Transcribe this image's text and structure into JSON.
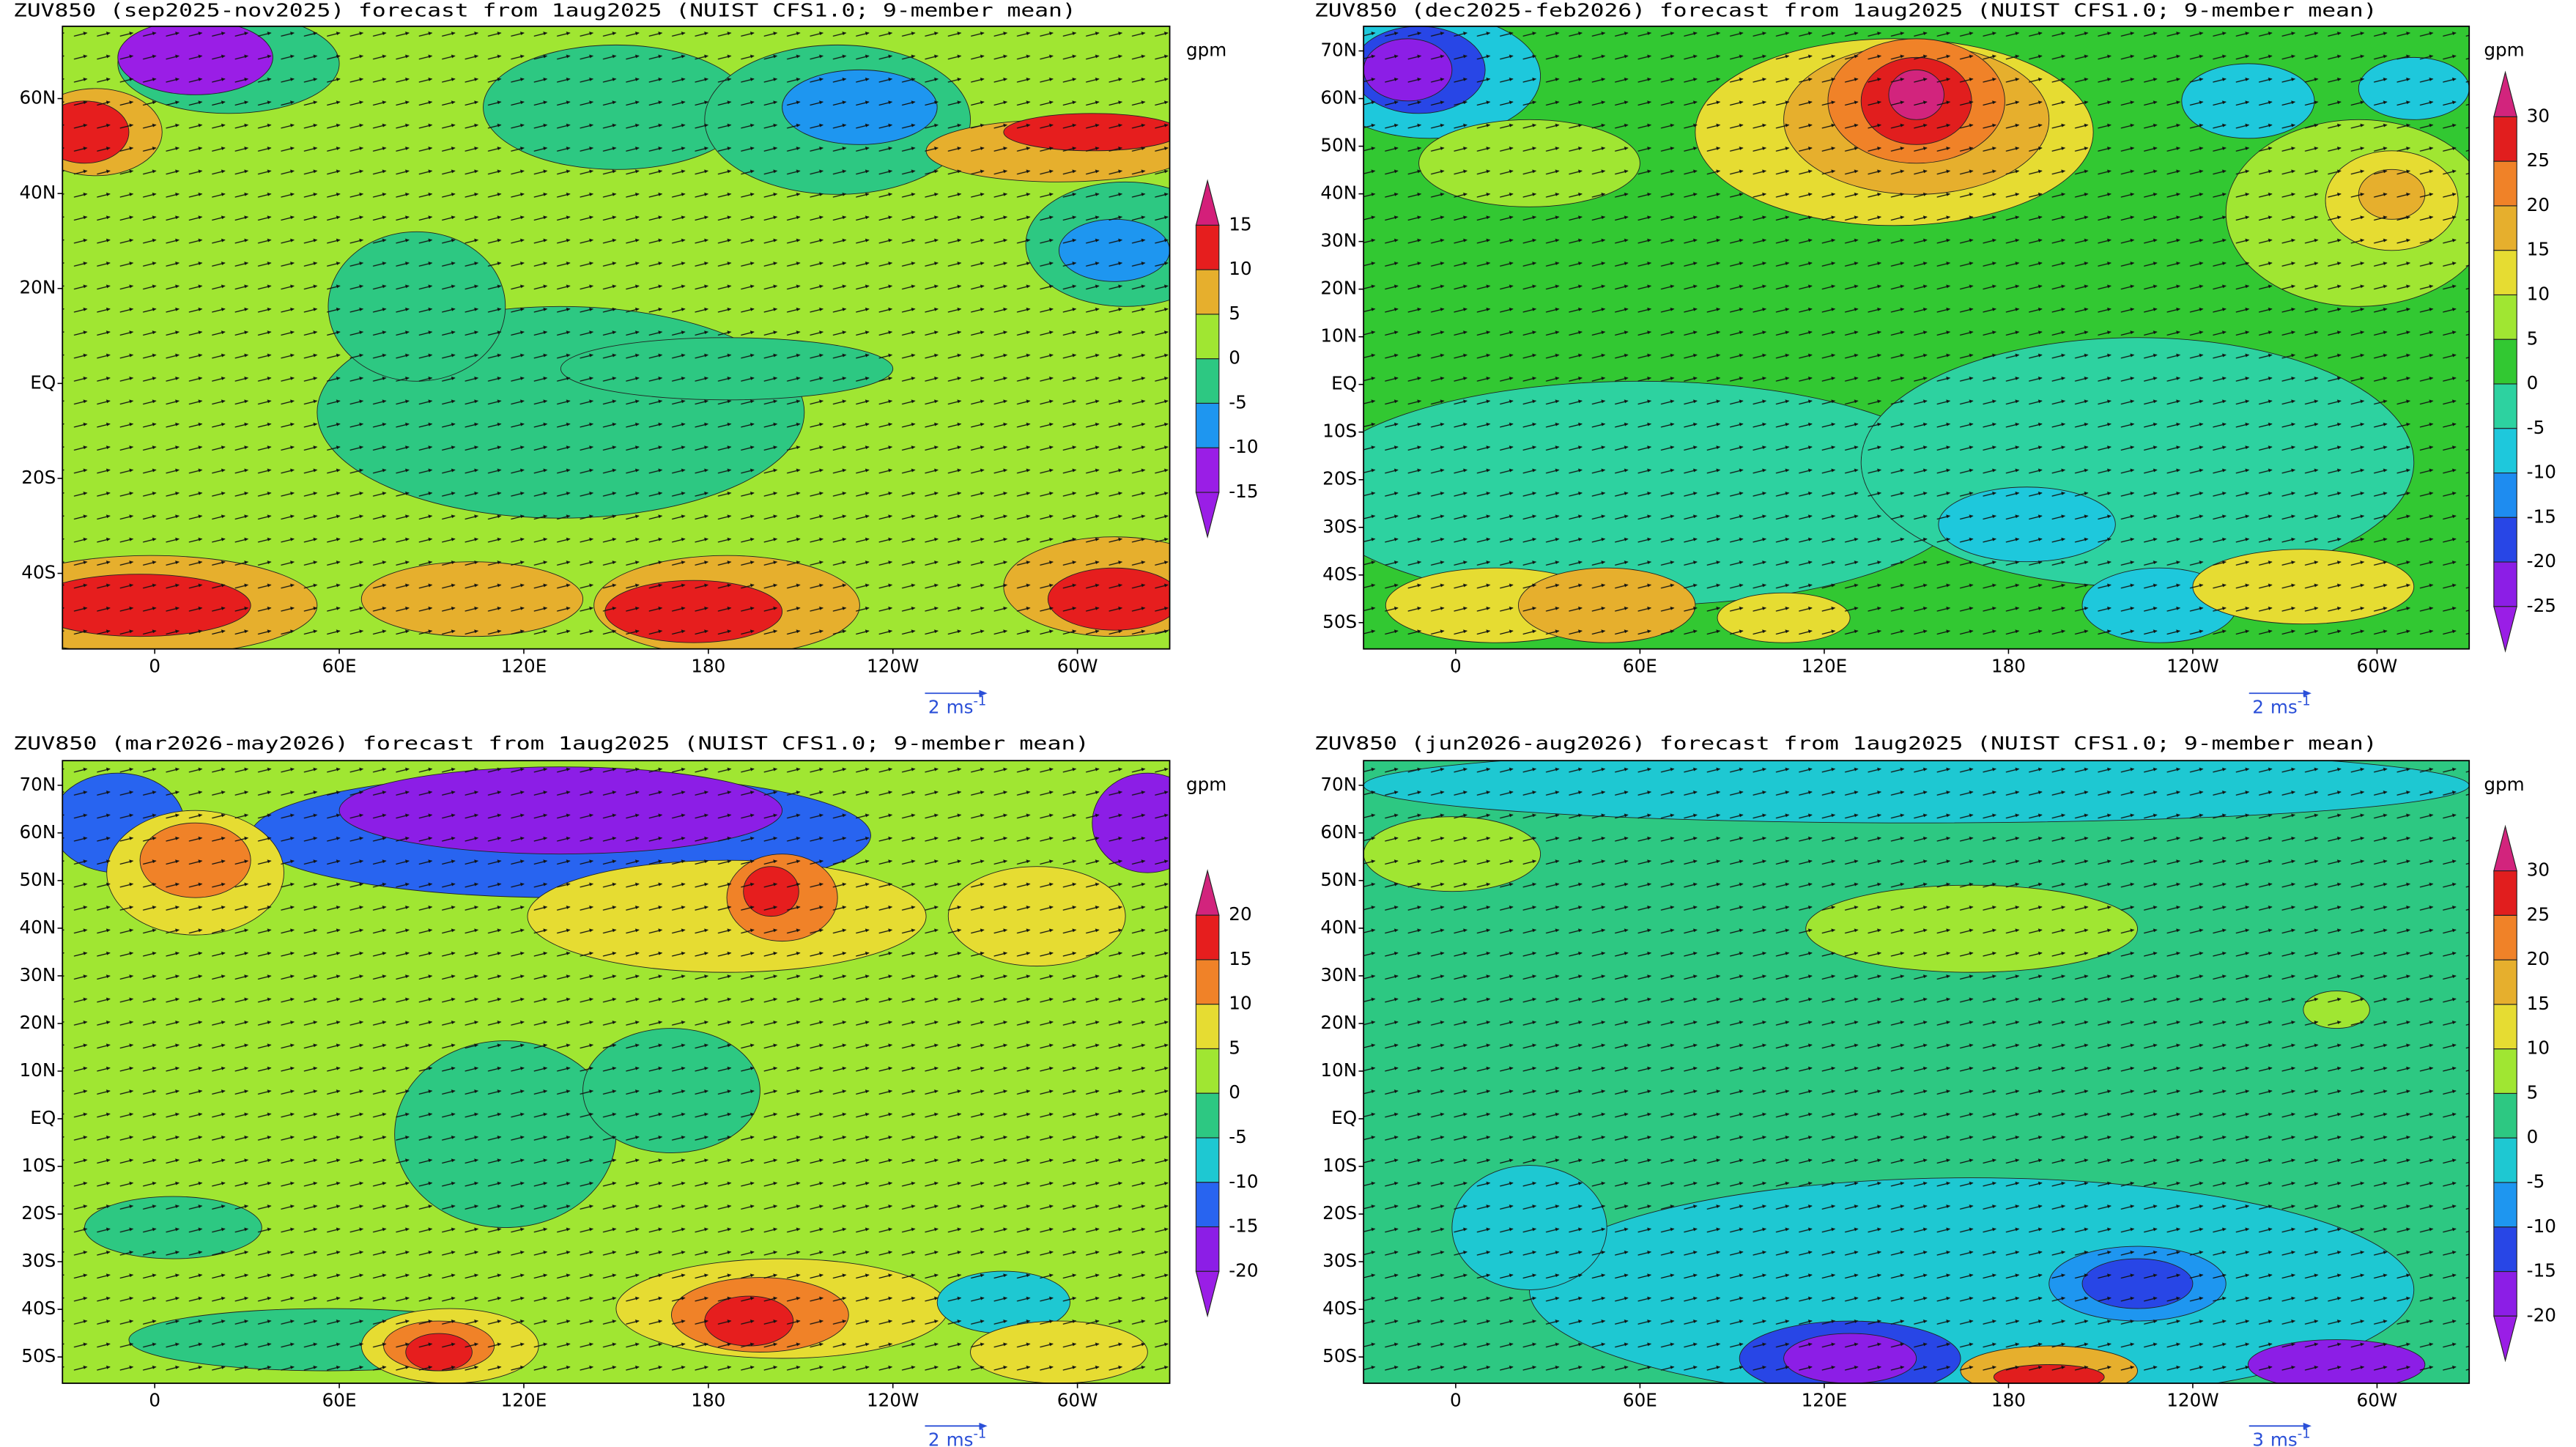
{
  "panels": [
    {
      "title": "ZUV850 (sep2025-nov2025) forecast from 1aug2025 (NUIST CFS1.0; 9-member mean)",
      "unit": "gpm",
      "lat_labels": [
        "60N",
        "40N",
        "20N",
        "EQ",
        "20S",
        "40S"
      ],
      "lon_labels": [
        "0",
        "60E",
        "120E",
        "180",
        "120W",
        "60W"
      ],
      "levels": [
        15,
        10,
        5,
        0,
        -5,
        -10,
        -15
      ],
      "colors": [
        "#d41f7a",
        "#e61e1e",
        "#e6af2d",
        "#a0e632",
        "#2dc882",
        "#1e96f0",
        "#9a1ee6",
        "#9a1ee6"
      ],
      "vector_ref": "2",
      "vector_unit": "ms",
      "vector_unit_exp": "-1"
    },
    {
      "title": "ZUV850 (dec2025-feb2026) forecast from 1aug2025 (NUIST CFS1.0; 9-member mean)",
      "unit": "gpm",
      "lat_labels": [
        "70N",
        "60N",
        "50N",
        "40N",
        "30N",
        "20N",
        "10N",
        "EQ",
        "10S",
        "20S",
        "30S",
        "40S",
        "50S"
      ],
      "lon_labels": [
        "0",
        "60E",
        "120E",
        "180",
        "120W",
        "60W"
      ],
      "levels": [
        30,
        25,
        20,
        15,
        10,
        5,
        0,
        -5,
        -10,
        -15,
        -20,
        -25
      ],
      "colors": [
        "#d2247d",
        "#e11e1e",
        "#f08228",
        "#e6af2d",
        "#e6dc32",
        "#a0e632",
        "#32c832",
        "#2dd2a0",
        "#1ec8dc",
        "#1e8cf0",
        "#2846e6",
        "#8c1ee6",
        "#9a1ee6"
      ],
      "vector_ref": "2",
      "vector_unit": "ms",
      "vector_unit_exp": "-1"
    },
    {
      "title": "ZUV850 (mar2026-may2026) forecast from 1aug2025 (NUIST CFS1.0; 9-member mean)",
      "unit": "gpm",
      "lat_labels": [
        "70N",
        "60N",
        "50N",
        "40N",
        "30N",
        "20N",
        "10N",
        "EQ",
        "10S",
        "20S",
        "30S",
        "40S",
        "50S"
      ],
      "lon_labels": [
        "0",
        "60E",
        "120E",
        "180",
        "120W",
        "60W"
      ],
      "levels": [
        20,
        15,
        10,
        5,
        0,
        -5,
        -10,
        -15,
        -20
      ],
      "colors": [
        "#d2247d",
        "#e61e1e",
        "#f08228",
        "#e6dc32",
        "#a0e632",
        "#2dc882",
        "#1ec8d2",
        "#2864f0",
        "#8c1ee6",
        "#9a1ee6"
      ],
      "vector_ref": "2",
      "vector_unit": "ms",
      "vector_unit_exp": "-1"
    },
    {
      "title": "ZUV850 (jun2026-aug2026) forecast from 1aug2025 (NUIST CFS1.0; 9-member mean)",
      "unit": "gpm",
      "lat_labels": [
        "70N",
        "60N",
        "50N",
        "40N",
        "30N",
        "20N",
        "10N",
        "EQ",
        "10S",
        "20S",
        "30S",
        "40S",
        "50S"
      ],
      "lon_labels": [
        "0",
        "60E",
        "120E",
        "180",
        "120W",
        "60W"
      ],
      "levels": [
        30,
        25,
        20,
        15,
        10,
        5,
        0,
        -5,
        -10,
        -15,
        -20
      ],
      "colors": [
        "#d2247d",
        "#e11e1e",
        "#f08228",
        "#e6af2d",
        "#e6dc32",
        "#a0e632",
        "#2dc882",
        "#1ec8d2",
        "#1e96f0",
        "#2846e6",
        "#8c1ee6",
        "#9a1ee6"
      ],
      "vector_ref": "3",
      "vector_unit": "ms",
      "vector_unit_exp": "-1"
    }
  ]
}
